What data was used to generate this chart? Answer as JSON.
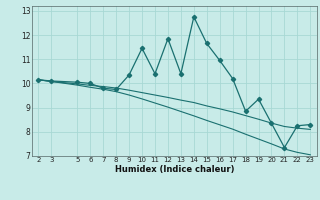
{
  "title": "",
  "xlabel": "Humidex (Indice chaleur)",
  "background_color": "#c8ebe8",
  "grid_color": "#a8d8d4",
  "line_color": "#1a7070",
  "x_data": [
    2,
    3,
    5,
    6,
    7,
    8,
    9,
    10,
    11,
    12,
    13,
    14,
    15,
    16,
    17,
    18,
    19,
    20,
    21,
    22,
    23
  ],
  "y_main": [
    10.15,
    10.1,
    10.05,
    10.0,
    9.8,
    9.75,
    10.35,
    11.45,
    10.4,
    11.85,
    10.4,
    12.75,
    11.65,
    10.95,
    10.2,
    8.85,
    9.35,
    8.35,
    7.35,
    8.25,
    8.3
  ],
  "y_trend1": [
    10.15,
    10.08,
    9.98,
    9.92,
    9.87,
    9.81,
    9.72,
    9.62,
    9.52,
    9.42,
    9.31,
    9.21,
    9.07,
    8.95,
    8.82,
    8.67,
    8.52,
    8.36,
    8.22,
    8.15,
    8.1
  ],
  "y_trend2": [
    10.15,
    10.08,
    9.93,
    9.84,
    9.76,
    9.66,
    9.52,
    9.36,
    9.19,
    9.02,
    8.84,
    8.66,
    8.47,
    8.29,
    8.11,
    7.9,
    7.7,
    7.5,
    7.29,
    7.15,
    7.05
  ],
  "xlim": [
    1.5,
    23.5
  ],
  "ylim": [
    7,
    13.2
  ],
  "yticks": [
    7,
    8,
    9,
    10,
    11,
    12,
    13
  ],
  "xticks": [
    2,
    3,
    5,
    6,
    7,
    8,
    9,
    10,
    11,
    12,
    13,
    14,
    15,
    16,
    17,
    18,
    19,
    20,
    21,
    22,
    23
  ]
}
